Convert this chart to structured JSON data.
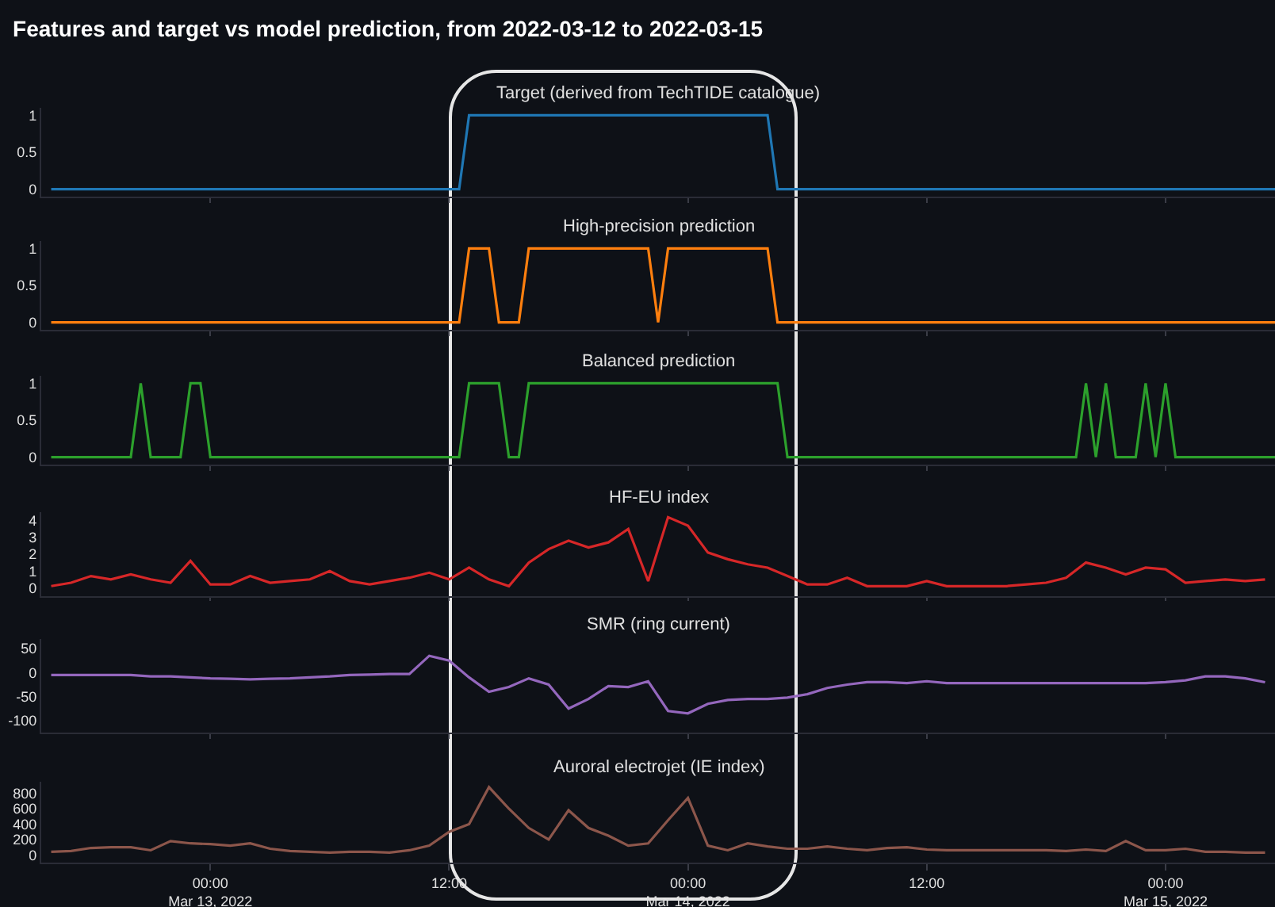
{
  "chart_data": [
    {
      "type": "line",
      "title": "Features and target vs model prediction, from 2022-03-12 to 2022-03-15",
      "subtitle": "Target (derived from TechTIDE catalogue)",
      "color": "#1f77b4",
      "x": [
        "2022-03-12T16:00",
        "2022-03-13T12:30",
        "2022-03-13T13:00",
        "2022-03-14T04:00",
        "2022-03-14T04:30",
        "2022-03-15T05:30"
      ],
      "values": [
        0,
        0,
        1,
        1,
        0,
        0
      ],
      "xlim": [
        "2022-03-12T15:30",
        "2022-03-15T05:30"
      ],
      "xticks": [
        {
          "value": "2022-03-13T00:00",
          "label": null
        },
        {
          "value": "2022-03-13T12:00",
          "label": null
        },
        {
          "value": "2022-03-14T00:00",
          "label": null
        },
        {
          "value": "2022-03-14T12:00",
          "label": null
        },
        {
          "value": "2022-03-15T00:00",
          "label": null
        }
      ],
      "ylim": [
        -0.1,
        1.1
      ],
      "yticks": [
        0,
        0.5,
        1
      ],
      "tick_labels": "y",
      "grid": false,
      "legend": false
    },
    {
      "type": "line",
      "subtitle": "High-precision prediction",
      "color": "#ff7f0e",
      "x": [
        "2022-03-12T16:00",
        "2022-03-13T12:30",
        "2022-03-13T13:00",
        "2022-03-13T14:00",
        "2022-03-13T14:30",
        "2022-03-13T15:30",
        "2022-03-13T16:00",
        "2022-03-13T22:00",
        "2022-03-13T22:30",
        "2022-03-13T23:00",
        "2022-03-14T04:00",
        "2022-03-14T04:30",
        "2022-03-15T05:30"
      ],
      "values": [
        0,
        0,
        1,
        1,
        0,
        0,
        1,
        1,
        0,
        1,
        1,
        0,
        0
      ],
      "xlim": [
        "2022-03-12T15:30",
        "2022-03-15T05:30"
      ],
      "xticks": [
        {
          "value": "2022-03-13T00:00",
          "label": null
        },
        {
          "value": "2022-03-13T12:00",
          "label": null
        },
        {
          "value": "2022-03-14T00:00",
          "label": null
        },
        {
          "value": "2022-03-14T12:00",
          "label": null
        },
        {
          "value": "2022-03-15T00:00",
          "label": null
        }
      ],
      "ylim": [
        -0.1,
        1.1
      ],
      "yticks": [
        0,
        0.5,
        1
      ],
      "tick_labels": "y",
      "grid": false,
      "legend": false
    },
    {
      "type": "line",
      "subtitle": "Balanced prediction",
      "color": "#2ca02c",
      "x": [
        "2022-03-12T16:00",
        "2022-03-12T20:00",
        "2022-03-12T20:30",
        "2022-03-12T21:00",
        "2022-03-12T22:30",
        "2022-03-12T23:00",
        "2022-03-12T23:30",
        "2022-03-13T00:00",
        "2022-03-13T12:30",
        "2022-03-13T13:00",
        "2022-03-13T14:30",
        "2022-03-13T15:00",
        "2022-03-13T15:30",
        "2022-03-13T16:00",
        "2022-03-14T04:30",
        "2022-03-14T05:00",
        "2022-03-14T19:30",
        "2022-03-14T20:00",
        "2022-03-14T20:30",
        "2022-03-14T21:00",
        "2022-03-14T21:30",
        "2022-03-14T22:30",
        "2022-03-14T23:00",
        "2022-03-14T23:30",
        "2022-03-15T00:00",
        "2022-03-15T00:30",
        "2022-03-15T05:30"
      ],
      "values": [
        0,
        0,
        1,
        0,
        0,
        1,
        1,
        0,
        0,
        1,
        1,
        0,
        0,
        1,
        1,
        0,
        0,
        1,
        0,
        1,
        0,
        0,
        1,
        0,
        1,
        0,
        0
      ],
      "xlim": [
        "2022-03-12T15:30",
        "2022-03-15T05:30"
      ],
      "xticks": [
        {
          "value": "2022-03-13T00:00",
          "label": null
        },
        {
          "value": "2022-03-13T12:00",
          "label": null
        },
        {
          "value": "2022-03-14T00:00",
          "label": null
        },
        {
          "value": "2022-03-14T12:00",
          "label": null
        },
        {
          "value": "2022-03-15T00:00",
          "label": null
        }
      ],
      "ylim": [
        -0.1,
        1.1
      ],
      "yticks": [
        0,
        0.5,
        1
      ],
      "tick_labels": "y",
      "grid": false,
      "legend": false
    },
    {
      "type": "line",
      "subtitle": "HF-EU index",
      "color": "#d62728",
      "x": [
        "2022-03-12T16:00",
        "2022-03-12T17:00",
        "2022-03-12T18:00",
        "2022-03-12T19:00",
        "2022-03-12T20:00",
        "2022-03-12T21:00",
        "2022-03-12T22:00",
        "2022-03-12T23:00",
        "2022-03-13T00:00",
        "2022-03-13T01:00",
        "2022-03-13T02:00",
        "2022-03-13T03:00",
        "2022-03-13T04:00",
        "2022-03-13T05:00",
        "2022-03-13T06:00",
        "2022-03-13T07:00",
        "2022-03-13T08:00",
        "2022-03-13T09:00",
        "2022-03-13T10:00",
        "2022-03-13T11:00",
        "2022-03-13T12:00",
        "2022-03-13T13:00",
        "2022-03-13T14:00",
        "2022-03-13T15:00",
        "2022-03-13T16:00",
        "2022-03-13T17:00",
        "2022-03-13T18:00",
        "2022-03-13T19:00",
        "2022-03-13T20:00",
        "2022-03-13T21:00",
        "2022-03-13T22:00",
        "2022-03-13T23:00",
        "2022-03-14T00:00",
        "2022-03-14T01:00",
        "2022-03-14T02:00",
        "2022-03-14T03:00",
        "2022-03-14T04:00",
        "2022-03-14T05:00",
        "2022-03-14T06:00",
        "2022-03-14T07:00",
        "2022-03-14T08:00",
        "2022-03-14T09:00",
        "2022-03-14T10:00",
        "2022-03-14T11:00",
        "2022-03-14T12:00",
        "2022-03-14T13:00",
        "2022-03-14T14:00",
        "2022-03-14T15:00",
        "2022-03-14T16:00",
        "2022-03-14T17:00",
        "2022-03-14T18:00",
        "2022-03-14T19:00",
        "2022-03-14T20:00",
        "2022-03-14T21:00",
        "2022-03-14T22:00",
        "2022-03-14T23:00",
        "2022-03-15T00:00",
        "2022-03-15T01:00",
        "2022-03-15T02:00",
        "2022-03-15T03:00",
        "2022-03-15T04:00",
        "2022-03-15T05:00"
      ],
      "values": [
        0.1,
        0.3,
        0.7,
        0.5,
        0.8,
        0.5,
        0.3,
        1.6,
        0.2,
        0.2,
        0.7,
        0.3,
        0.4,
        0.5,
        1.0,
        0.4,
        0.2,
        0.4,
        0.6,
        0.9,
        0.5,
        1.2,
        0.5,
        0.1,
        1.5,
        2.3,
        2.8,
        2.4,
        2.7,
        3.5,
        0.4,
        4.2,
        3.7,
        2.1,
        1.7,
        1.4,
        1.2,
        0.7,
        0.2,
        0.2,
        0.6,
        0.1,
        0.1,
        0.1,
        0.4,
        0.1,
        0.1,
        0.1,
        0.1,
        0.2,
        0.3,
        0.6,
        1.5,
        1.2,
        0.8,
        1.2,
        1.1,
        0.3,
        0.4,
        0.5,
        0.4,
        0.5
      ],
      "xlim": [
        "2022-03-12T15:30",
        "2022-03-15T05:30"
      ],
      "xticks": [
        {
          "value": "2022-03-13T00:00",
          "label": null
        },
        {
          "value": "2022-03-13T12:00",
          "label": null
        },
        {
          "value": "2022-03-14T00:00",
          "label": null
        },
        {
          "value": "2022-03-14T12:00",
          "label": null
        },
        {
          "value": "2022-03-15T00:00",
          "label": null
        }
      ],
      "ylim": [
        -0.5,
        4.5
      ],
      "yticks": [
        0,
        1,
        2,
        3,
        4
      ],
      "tick_labels": "y",
      "grid": false,
      "legend": false
    },
    {
      "type": "line",
      "subtitle": "SMR (ring current)",
      "color": "#9467bd",
      "x": [
        "2022-03-12T16:00",
        "2022-03-12T17:00",
        "2022-03-12T18:00",
        "2022-03-12T19:00",
        "2022-03-12T20:00",
        "2022-03-12T21:00",
        "2022-03-12T22:00",
        "2022-03-12T23:00",
        "2022-03-13T00:00",
        "2022-03-13T01:00",
        "2022-03-13T02:00",
        "2022-03-13T03:00",
        "2022-03-13T04:00",
        "2022-03-13T05:00",
        "2022-03-13T06:00",
        "2022-03-13T07:00",
        "2022-03-13T08:00",
        "2022-03-13T09:00",
        "2022-03-13T10:00",
        "2022-03-13T11:00",
        "2022-03-13T12:00",
        "2022-03-13T13:00",
        "2022-03-13T14:00",
        "2022-03-13T15:00",
        "2022-03-13T16:00",
        "2022-03-13T17:00",
        "2022-03-13T18:00",
        "2022-03-13T19:00",
        "2022-03-13T20:00",
        "2022-03-13T21:00",
        "2022-03-13T22:00",
        "2022-03-13T23:00",
        "2022-03-14T00:00",
        "2022-03-14T01:00",
        "2022-03-14T02:00",
        "2022-03-14T03:00",
        "2022-03-14T04:00",
        "2022-03-14T05:00",
        "2022-03-14T06:00",
        "2022-03-14T07:00",
        "2022-03-14T08:00",
        "2022-03-14T09:00",
        "2022-03-14T10:00",
        "2022-03-14T11:00",
        "2022-03-14T12:00",
        "2022-03-14T13:00",
        "2022-03-14T14:00",
        "2022-03-14T15:00",
        "2022-03-14T16:00",
        "2022-03-14T17:00",
        "2022-03-14T18:00",
        "2022-03-14T19:00",
        "2022-03-14T20:00",
        "2022-03-14T21:00",
        "2022-03-14T22:00",
        "2022-03-14T23:00",
        "2022-03-15T00:00",
        "2022-03-15T01:00",
        "2022-03-15T02:00",
        "2022-03-15T03:00",
        "2022-03-15T04:00",
        "2022-03-15T05:00"
      ],
      "values": [
        -5,
        -5,
        -5,
        -5,
        -5,
        -8,
        -8,
        -10,
        -12,
        -13,
        -14,
        -13,
        -12,
        -10,
        -8,
        -5,
        -4,
        -3,
        -3,
        35,
        25,
        -10,
        -40,
        -30,
        -12,
        -25,
        -75,
        -55,
        -28,
        -30,
        -18,
        -80,
        -85,
        -65,
        -57,
        -55,
        -55,
        -52,
        -45,
        -32,
        -25,
        -20,
        -20,
        -22,
        -18,
        -22,
        -22,
        -22,
        -22,
        -22,
        -22,
        -22,
        -22,
        -22,
        -22,
        -22,
        -20,
        -16,
        -8,
        -8,
        -12,
        -20
      ],
      "xlim": [
        "2022-03-12T15:30",
        "2022-03-15T05:30"
      ],
      "xticks": [
        {
          "value": "2022-03-13T00:00",
          "label": null
        },
        {
          "value": "2022-03-13T12:00",
          "label": null
        },
        {
          "value": "2022-03-14T00:00",
          "label": null
        },
        {
          "value": "2022-03-14T12:00",
          "label": null
        },
        {
          "value": "2022-03-15T00:00",
          "label": null
        }
      ],
      "ylim": [
        -125,
        70
      ],
      "yticks": [
        -100,
        -50,
        0,
        50
      ],
      "tick_labels": "y",
      "grid": false,
      "legend": false
    },
    {
      "type": "line",
      "subtitle": "Auroral electrojet (IE index)",
      "color": "#8c564b",
      "x": [
        "2022-03-12T16:00",
        "2022-03-12T17:00",
        "2022-03-12T18:00",
        "2022-03-12T19:00",
        "2022-03-12T20:00",
        "2022-03-12T21:00",
        "2022-03-12T22:00",
        "2022-03-12T23:00",
        "2022-03-13T00:00",
        "2022-03-13T01:00",
        "2022-03-13T02:00",
        "2022-03-13T03:00",
        "2022-03-13T04:00",
        "2022-03-13T05:00",
        "2022-03-13T06:00",
        "2022-03-13T07:00",
        "2022-03-13T08:00",
        "2022-03-13T09:00",
        "2022-03-13T10:00",
        "2022-03-13T11:00",
        "2022-03-13T12:00",
        "2022-03-13T13:00",
        "2022-03-13T14:00",
        "2022-03-13T15:00",
        "2022-03-13T16:00",
        "2022-03-13T17:00",
        "2022-03-13T18:00",
        "2022-03-13T19:00",
        "2022-03-13T20:00",
        "2022-03-13T21:00",
        "2022-03-13T22:00",
        "2022-03-13T23:00",
        "2022-03-14T00:00",
        "2022-03-14T01:00",
        "2022-03-14T02:00",
        "2022-03-14T03:00",
        "2022-03-14T04:00",
        "2022-03-14T05:00",
        "2022-03-14T06:00",
        "2022-03-14T07:00",
        "2022-03-14T08:00",
        "2022-03-14T09:00",
        "2022-03-14T10:00",
        "2022-03-14T11:00",
        "2022-03-14T12:00",
        "2022-03-14T13:00",
        "2022-03-14T14:00",
        "2022-03-14T15:00",
        "2022-03-14T16:00",
        "2022-03-14T17:00",
        "2022-03-14T18:00",
        "2022-03-14T19:00",
        "2022-03-14T20:00",
        "2022-03-14T21:00",
        "2022-03-14T22:00",
        "2022-03-14T23:00",
        "2022-03-15T00:00",
        "2022-03-15T01:00",
        "2022-03-15T02:00",
        "2022-03-15T03:00",
        "2022-03-15T04:00",
        "2022-03-15T05:00"
      ],
      "values": [
        40,
        50,
        90,
        100,
        100,
        60,
        180,
        150,
        140,
        120,
        150,
        80,
        50,
        40,
        30,
        40,
        40,
        30,
        60,
        120,
        300,
        400,
        880,
        600,
        350,
        200,
        580,
        350,
        250,
        120,
        150,
        450,
        740,
        120,
        60,
        150,
        110,
        80,
        80,
        110,
        80,
        60,
        90,
        100,
        70,
        60,
        60,
        60,
        60,
        60,
        60,
        50,
        70,
        50,
        180,
        60,
        60,
        80,
        40,
        40,
        30,
        30
      ],
      "xlim": [
        "2022-03-12T15:30",
        "2022-03-15T05:30"
      ],
      "xticks": [
        {
          "value": "2022-03-13T00:00",
          "label": "00:00\nMar 13, 2022"
        },
        {
          "value": "2022-03-13T12:00",
          "label": "12:00"
        },
        {
          "value": "2022-03-14T00:00",
          "label": "00:00\nMar 14, 2022"
        },
        {
          "value": "2022-03-14T12:00",
          "label": "12:00"
        },
        {
          "value": "2022-03-15T00:00",
          "label": "00:00\nMar 15, 2022"
        }
      ],
      "ylim": [
        -100,
        950
      ],
      "yticks": [
        0,
        200,
        400,
        600,
        800
      ],
      "grid": false,
      "legend": false
    }
  ]
}
